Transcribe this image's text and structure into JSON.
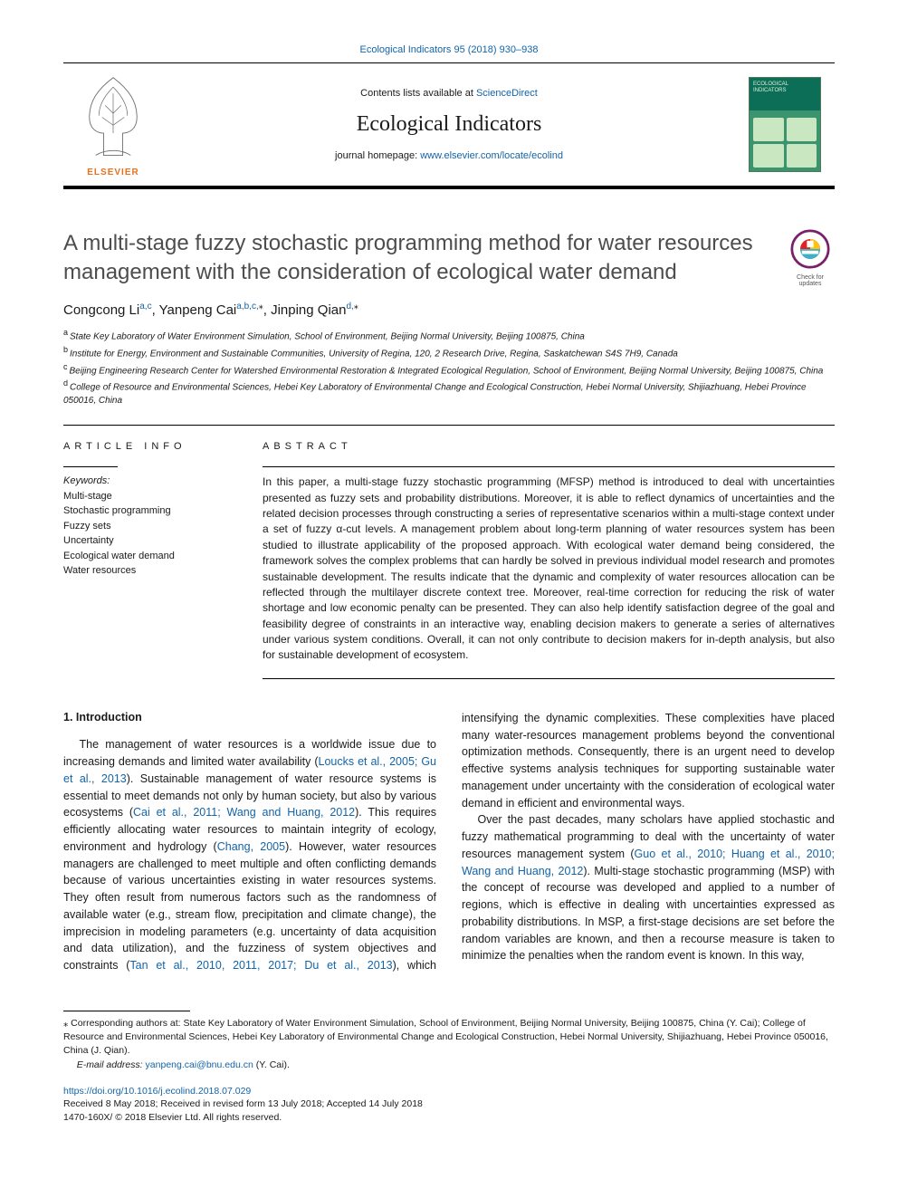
{
  "masthead": {
    "citation_line": "Ecological Indicators 95 (2018) 930–938",
    "contents_prefix": "Contents lists available at ",
    "contents_link": "ScienceDirect",
    "journal_name": "Ecological Indicators",
    "homepage_prefix": "journal homepage: ",
    "homepage_link": "www.elsevier.com/locate/ecolind",
    "publisher_word": "ELSEVIER",
    "cover_caption": "ECOLOGICAL INDICATORS"
  },
  "title": "A multi-stage fuzzy stochastic programming method for water resources management with the consideration of ecological water demand",
  "check_badge": {
    "line1": "Check for",
    "line2": "updates"
  },
  "authors_html": "Congcong Li<sup>a,c</sup>, Yanpeng Cai<sup>a,b,c,</sup><sup class='star'>⁎</sup>, Jinping Qian<sup>d,</sup><sup class='star'>⁎</sup>",
  "affiliations": [
    {
      "tag": "a",
      "text": "State Key Laboratory of Water Environment Simulation, School of Environment, Beijing Normal University, Beijing 100875, China"
    },
    {
      "tag": "b",
      "text": "Institute for Energy, Environment and Sustainable Communities, University of Regina, 120, 2 Research Drive, Regina, Saskatchewan S4S 7H9, Canada"
    },
    {
      "tag": "c",
      "text": "Beijing Engineering Research Center for Watershed Environmental Restoration & Integrated Ecological Regulation, School of Environment, Beijing Normal University, Beijing 100875, China"
    },
    {
      "tag": "d",
      "text": "College of Resource and Environmental Sciences, Hebei Key Laboratory of Environmental Change and Ecological Construction, Hebei Normal University, Shijiazhuang, Hebei Province 050016, China"
    }
  ],
  "article_info": {
    "heading": "ARTICLE INFO",
    "keywords_label": "Keywords:",
    "keywords": [
      "Multi-stage",
      "Stochastic programming",
      "Fuzzy sets",
      "Uncertainty",
      "Ecological water demand",
      "Water resources"
    ]
  },
  "abstract": {
    "heading": "ABSTRACT",
    "text": "In this paper, a multi-stage fuzzy stochastic programming (MFSP) method is introduced to deal with uncertainties presented as fuzzy sets and probability distributions. Moreover, it is able to reflect dynamics of uncertainties and the related decision processes through constructing a series of representative scenarios within a multi-stage context under a set of fuzzy α-cut levels. A management problem about long-term planning of water resources system has been studied to illustrate applicability of the proposed approach. With ecological water demand being considered, the framework solves the complex problems that can hardly be solved in previous individual model research and promotes sustainable development. The results indicate that the dynamic and complexity of water resources allocation can be reflected through the multilayer discrete context tree. Moreover, real-time correction for reducing the risk of water shortage and low economic penalty can be presented. They can also help identify satisfaction degree of the goal and feasibility degree of constraints in an interactive way, enabling decision makers to generate a series of alternatives under various system conditions. Overall, it can not only contribute to decision makers for in-depth analysis, but also for sustainable development of ecosystem."
  },
  "intro": {
    "heading": "1. Introduction",
    "p1_pre": "The management of water resources is a worldwide issue due to increasing demands and limited water availability (",
    "p1_c1": "Loucks et al., 2005; Gu et al., 2013",
    "p1_m1": "). Sustainable management of water resource systems is essential to meet demands not only by human society, but also by various ecosystems (",
    "p1_c2": "Cai et al., 2011; Wang and Huang, 2012",
    "p1_m2": "). This requires efficiently allocating water resources to maintain integrity of ecology, environment and hydrology (",
    "p1_c3": "Chang, 2005",
    "p1_m3": "). However, water resources managers are challenged to meet multiple and often conflicting demands because of various uncertainties existing in water resources systems. They often result from numerous factors such as the randomness of available water (e.g., stream flow, precipitation and climate change), the imprecision in modeling parameters (e.g. uncertainty of data acquisition and data utilization), and the fuzziness of system objectives and constraints (",
    "p1_c4": "Tan et al., 2010, 2011, 2017; Du",
    "p1_c4b": "et al., 2013",
    "p1_m4": "), which intensifying the dynamic complexities. These complexities have placed many water-resources management problems beyond the conventional optimization methods. Consequently, there is an urgent need to develop effective systems analysis techniques for supporting sustainable water management under uncertainty with the consideration of ecological water demand in efficient and environmental ways.",
    "p2_pre": "Over the past decades, many scholars have applied stochastic and fuzzy mathematical programming to deal with the uncertainty of water resources management system (",
    "p2_c1": "Guo et al., 2010; Huang et al., 2010; Wang and Huang, 2012",
    "p2_post": "). Multi-stage stochastic programming (MSP) with the concept of recourse was developed and applied to a number of regions, which is effective in dealing with uncertainties expressed as probability distributions. In MSP, a first-stage decisions are set before the random variables are known, and then a recourse measure is taken to minimize the penalties when the random event is known. In this way,"
  },
  "footnote": {
    "corr_prefix": "⁎ Corresponding authors at: State Key Laboratory of Water Environment Simulation, School of Environment, Beijing Normal University, Beijing 100875, China (Y. Cai); College of Resource and Environmental Sciences, Hebei Key Laboratory of Environmental Change and Ecological Construction, Hebei Normal University, Shijiazhuang, Hebei Province 050016, China (J. Qian).",
    "email_label": "E-mail address: ",
    "email": "yanpeng.cai@bnu.edu.cn",
    "email_suffix": " (Y. Cai)."
  },
  "doi": {
    "link": "https://doi.org/10.1016/j.ecolind.2018.07.029",
    "history": "Received 8 May 2018; Received in revised form 13 July 2018; Accepted 14 July 2018",
    "copyright": "1470-160X/ © 2018 Elsevier Ltd. All rights reserved."
  },
  "colors": {
    "link": "#1364a8",
    "elsevier_orange": "#e9711c",
    "heading_gray": "#4d4d4d"
  }
}
